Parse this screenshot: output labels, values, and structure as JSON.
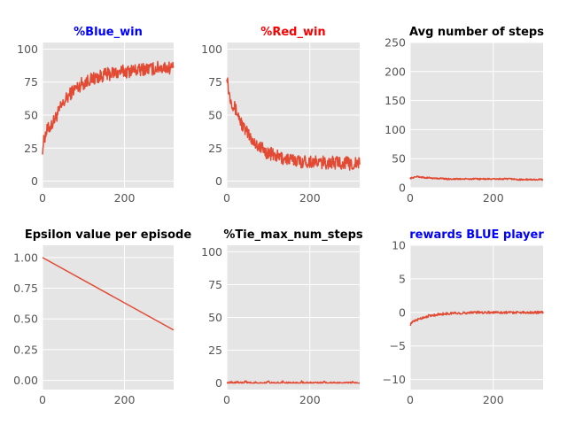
{
  "figure": {
    "background": "#ffffff",
    "panel_bg": "#e5e5e5",
    "grid_color": "#ffffff",
    "line_color": "#e24a33"
  },
  "chart_data": [
    {
      "type": "line",
      "title": "%Blue_win",
      "title_color": "#0000ff",
      "xlim": [
        0,
        320
      ],
      "ylim": [
        -5,
        105
      ],
      "xticks": [
        0,
        200
      ],
      "yticks": [
        0,
        25,
        50,
        75,
        100
      ],
      "grid": true,
      "series": [
        {
          "x_range": [
            0,
            320
          ],
          "y": [
            25,
            33,
            38,
            40,
            42,
            44,
            47,
            50,
            53,
            56,
            58,
            61,
            63,
            65,
            67,
            69,
            70,
            71,
            72,
            74,
            74,
            75,
            76,
            77,
            77,
            78,
            78,
            79,
            79,
            80,
            80,
            81,
            81,
            81,
            82,
            82,
            82,
            82,
            83,
            83,
            83,
            83,
            83,
            84,
            84,
            84,
            84,
            84,
            84,
            85,
            85,
            85,
            85,
            85,
            85,
            85,
            86,
            86,
            86,
            86,
            86,
            86,
            86,
            86,
            86
          ]
        }
      ]
    },
    {
      "type": "line",
      "title": "%Red_win",
      "title_color": "#ff0000",
      "xlim": [
        0,
        320
      ],
      "ylim": [
        -5,
        105
      ],
      "xticks": [
        0,
        200
      ],
      "yticks": [
        0,
        25,
        50,
        75,
        100
      ],
      "grid": true,
      "series": [
        {
          "x_range": [
            0,
            320
          ],
          "y": [
            82,
            67,
            62,
            58,
            55,
            52,
            48,
            44,
            41,
            38,
            36,
            34,
            32,
            30,
            28,
            27,
            26,
            25,
            23,
            22,
            21,
            21,
            20,
            19,
            19,
            18,
            18,
            17,
            17,
            17,
            16,
            16,
            16,
            16,
            16,
            15,
            15,
            15,
            15,
            15,
            15,
            15,
            15,
            14,
            14,
            14,
            14,
            14,
            14,
            14,
            14,
            14,
            14,
            14,
            14,
            14,
            14,
            14,
            14,
            13,
            13,
            13,
            13,
            13,
            13
          ]
        }
      ]
    },
    {
      "type": "line",
      "title": "Avg number of steps",
      "title_color": "#000000",
      "xlim": [
        0,
        320
      ],
      "ylim": [
        0,
        250
      ],
      "xticks": [
        0,
        200
      ],
      "yticks": [
        0,
        50,
        100,
        150,
        200,
        250
      ],
      "grid": true,
      "series": [
        {
          "x_range": [
            0,
            320
          ],
          "y": [
            16,
            17,
            18,
            19,
            19,
            18,
            18,
            17,
            17,
            17,
            17,
            16,
            16,
            16,
            16,
            16,
            16,
            15,
            15,
            15,
            15,
            15,
            15,
            15,
            15,
            15,
            15,
            15,
            15,
            15,
            15,
            15,
            15,
            15,
            15,
            15,
            15,
            15,
            15,
            15,
            15,
            15,
            15,
            15,
            15,
            15,
            15,
            15,
            15,
            15,
            15,
            14,
            14,
            14,
            14,
            14,
            14,
            14,
            14,
            14,
            14,
            14,
            14,
            14,
            14
          ]
        }
      ]
    },
    {
      "type": "line",
      "title": "Epsilon value per episode",
      "title_color": "#000000",
      "xlim": [
        0,
        320
      ],
      "ylim": [
        -0.075,
        1.1
      ],
      "xticks": [
        0,
        200
      ],
      "yticks": [
        0.0,
        0.25,
        0.5,
        0.75,
        1.0
      ],
      "ytick_labels": [
        "0.00",
        "0.25",
        "0.50",
        "0.75",
        "1.00"
      ],
      "grid": true,
      "series": [
        {
          "x": [
            0,
            320
          ],
          "y": [
            1.0,
            0.41
          ]
        }
      ]
    },
    {
      "type": "line",
      "title": "%Tie_max_num_steps",
      "title_color": "#000000",
      "xlim": [
        0,
        320
      ],
      "ylim": [
        -5,
        105
      ],
      "xticks": [
        0,
        200
      ],
      "yticks": [
        0,
        25,
        50,
        75,
        100
      ],
      "grid": true,
      "series": [
        {
          "x_range": [
            0,
            320
          ],
          "y": [
            0,
            0,
            1,
            0,
            0,
            1,
            0,
            0,
            0,
            1,
            0,
            0,
            0,
            0,
            1,
            0,
            0,
            0,
            0,
            0,
            1,
            0,
            0,
            0,
            0,
            0,
            0,
            1,
            0,
            0,
            0,
            0,
            0,
            0,
            0,
            0,
            1,
            0,
            0,
            0,
            0,
            0,
            0,
            0,
            0,
            0,
            0,
            1,
            0,
            0,
            0,
            0,
            0,
            0,
            0,
            0,
            0,
            0,
            0,
            0,
            0,
            1,
            0,
            0,
            0
          ]
        }
      ]
    },
    {
      "type": "line",
      "title": "rewards BLUE player",
      "title_color": "#0000ff",
      "xlim": [
        0,
        320
      ],
      "ylim": [
        -11.5,
        10
      ],
      "xticks": [
        0,
        200
      ],
      "yticks": [
        -10,
        -5,
        0,
        5,
        10
      ],
      "ytick_labels": [
        "−10",
        "−5",
        "0",
        "5",
        "10"
      ],
      "grid": true,
      "series": [
        {
          "x_range": [
            0,
            320
          ],
          "y": [
            -1.8,
            -1.5,
            -1.3,
            -1.2,
            -1.0,
            -0.9,
            -0.8,
            -0.7,
            -0.6,
            -0.5,
            -0.5,
            -0.4,
            -0.4,
            -0.3,
            -0.3,
            -0.3,
            -0.2,
            -0.2,
            -0.2,
            -0.2,
            -0.1,
            -0.1,
            -0.1,
            -0.1,
            -0.1,
            -0.1,
            -0.1,
            -0.1,
            0,
            0,
            0,
            0,
            0,
            0,
            0,
            0,
            0,
            0,
            0,
            0,
            0,
            0,
            0,
            0,
            0,
            0,
            0,
            0,
            0,
            0,
            0,
            0,
            0,
            0,
            0,
            0,
            0,
            0,
            0,
            0,
            0,
            0,
            0,
            0,
            0
          ]
        }
      ]
    }
  ]
}
